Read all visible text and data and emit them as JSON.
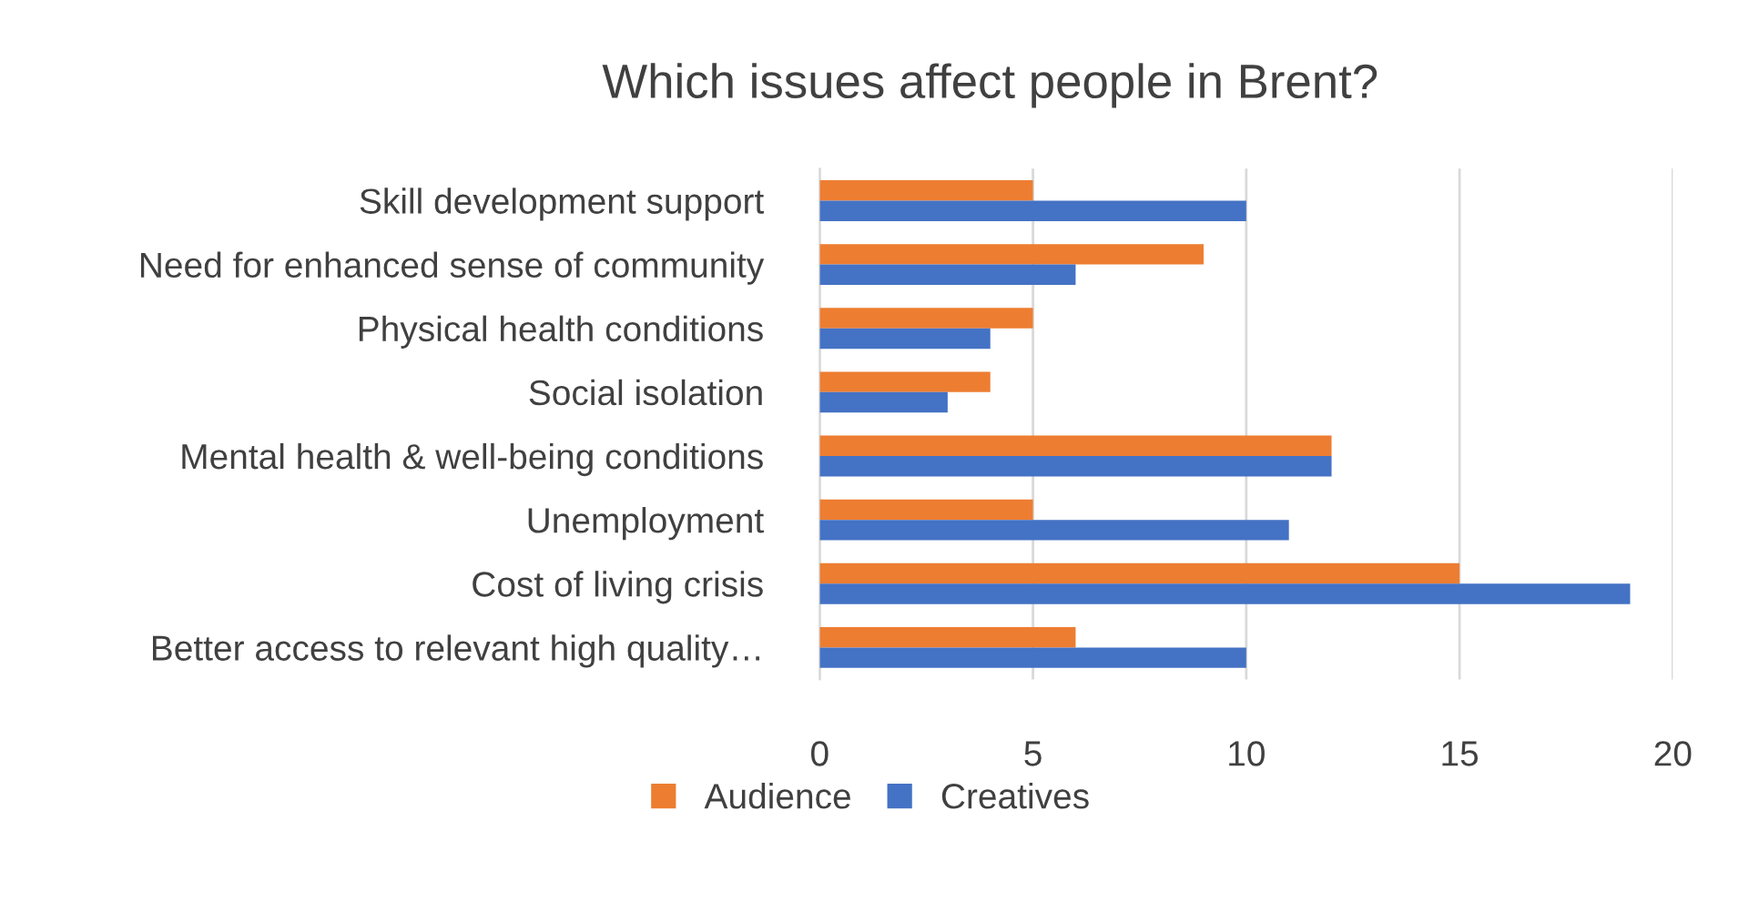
{
  "chart_data": {
    "type": "bar",
    "orientation": "horizontal",
    "title": "Which issues affect people in Brent?",
    "categories": [
      "Skill development support",
      "Need for enhanced sense of community",
      "Physical health conditions",
      "Social isolation",
      "Mental health & well-being conditions",
      "Unemployment",
      "Cost of living crisis",
      "Better access to relevant high quality…"
    ],
    "series": [
      {
        "name": "Audience",
        "color": "#ed7d31",
        "values": [
          5,
          9,
          5,
          4,
          12,
          5,
          15,
          6
        ]
      },
      {
        "name": "Creatives",
        "color": "#4472c4",
        "values": [
          10,
          6,
          4,
          3,
          12,
          11,
          19,
          10
        ]
      }
    ],
    "xlim": [
      0,
      20
    ],
    "xticks": [
      0,
      5,
      10,
      15,
      20
    ],
    "grid": "x",
    "legend": "bottom"
  }
}
